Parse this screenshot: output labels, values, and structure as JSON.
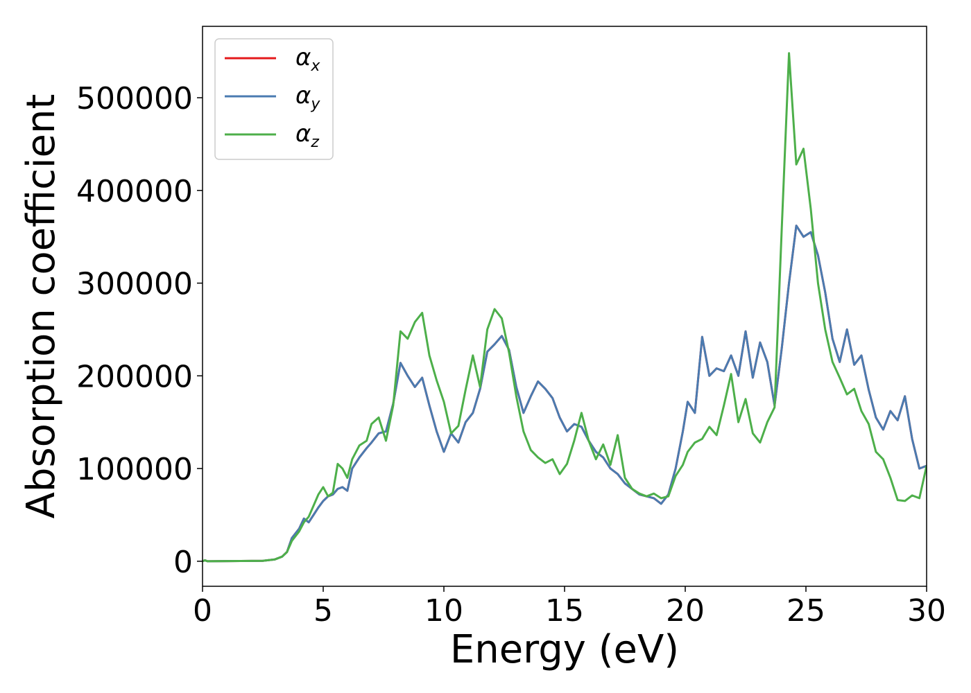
{
  "chart_data": {
    "type": "line",
    "xlabel": "Energy (eV)",
    "ylabel": "Absorption coefficient",
    "xlim": [
      0,
      30
    ],
    "ylim": [
      -27000,
      577000
    ],
    "xticks": [
      "0",
      "5",
      "10",
      "15",
      "20",
      "25",
      "30"
    ],
    "yticks": [
      "0",
      "100000",
      "200000",
      "300000",
      "400000",
      "500000"
    ],
    "grid": false,
    "legend_position": "top-left",
    "series": [
      {
        "name": "αx",
        "legend_symbol": "α",
        "legend_subscript": "x",
        "color": "#e41a1c",
        "x": [
          0,
          0.1,
          0.2,
          2.5,
          3.0,
          3.3,
          3.5,
          3.7,
          4.0,
          4.2,
          4.4,
          4.6,
          4.8,
          5.0,
          5.2,
          5.4,
          5.6,
          5.8,
          6.0,
          6.2,
          6.5,
          6.8,
          7.0,
          7.3,
          7.6,
          7.9,
          8.2,
          8.5,
          8.8,
          9.1,
          9.4,
          9.7,
          10.0,
          10.3,
          10.6,
          10.9,
          11.2,
          11.5,
          11.8,
          12.1,
          12.4,
          12.7,
          13.0,
          13.3,
          13.6,
          13.9,
          14.2,
          14.5,
          14.8,
          15.1,
          15.4,
          15.7,
          16.0,
          16.3,
          16.6,
          16.9,
          17.2,
          17.5,
          17.8,
          18.1,
          18.4,
          18.7,
          19.0,
          19.3,
          19.6,
          19.9,
          20.1,
          20.4,
          20.7,
          21.0,
          21.3,
          21.6,
          21.9,
          22.2,
          22.5,
          22.8,
          23.1,
          23.4,
          23.7,
          24.0,
          24.3,
          24.6,
          24.9,
          25.2,
          25.5,
          25.8,
          26.1,
          26.4,
          26.7,
          27.0,
          27.3,
          27.6,
          27.9,
          28.2,
          28.5,
          28.8,
          29.1,
          29.4,
          29.7,
          30.0
        ],
        "y": [
          0,
          1000,
          0,
          500,
          2000,
          5000,
          10000,
          25000,
          35000,
          46000,
          42000,
          50000,
          58000,
          65000,
          70000,
          72000,
          78000,
          80000,
          76000,
          100000,
          112000,
          122000,
          128000,
          138000,
          140000,
          170000,
          214000,
          200000,
          188000,
          198000,
          168000,
          140000,
          118000,
          138000,
          128000,
          150000,
          160000,
          186000,
          226000,
          234000,
          243000,
          228000,
          188000,
          160000,
          178000,
          194000,
          186000,
          176000,
          155000,
          140000,
          148000,
          145000,
          130000,
          118000,
          112000,
          100000,
          94000,
          84000,
          78000,
          72000,
          70000,
          68000,
          62000,
          72000,
          100000,
          140000,
          172000,
          160000,
          242000,
          200000,
          208000,
          205000,
          222000,
          200000,
          248000,
          198000,
          236000,
          215000,
          168000,
          230000,
          300000,
          362000,
          350000,
          355000,
          330000,
          290000,
          240000,
          215000,
          250000,
          212000,
          222000,
          185000,
          155000,
          142000,
          162000,
          152000,
          178000,
          132000,
          100000,
          103000
        ]
      },
      {
        "name": "αy",
        "legend_symbol": "α",
        "legend_subscript": "y",
        "color": "#4a7bb0",
        "x": [
          0,
          0.1,
          0.2,
          2.5,
          3.0,
          3.3,
          3.5,
          3.7,
          4.0,
          4.2,
          4.4,
          4.6,
          4.8,
          5.0,
          5.2,
          5.4,
          5.6,
          5.8,
          6.0,
          6.2,
          6.5,
          6.8,
          7.0,
          7.3,
          7.6,
          7.9,
          8.2,
          8.5,
          8.8,
          9.1,
          9.4,
          9.7,
          10.0,
          10.3,
          10.6,
          10.9,
          11.2,
          11.5,
          11.8,
          12.1,
          12.4,
          12.7,
          13.0,
          13.3,
          13.6,
          13.9,
          14.2,
          14.5,
          14.8,
          15.1,
          15.4,
          15.7,
          16.0,
          16.3,
          16.6,
          16.9,
          17.2,
          17.5,
          17.8,
          18.1,
          18.4,
          18.7,
          19.0,
          19.3,
          19.6,
          19.9,
          20.1,
          20.4,
          20.7,
          21.0,
          21.3,
          21.6,
          21.9,
          22.2,
          22.5,
          22.8,
          23.1,
          23.4,
          23.7,
          24.0,
          24.3,
          24.6,
          24.9,
          25.2,
          25.5,
          25.8,
          26.1,
          26.4,
          26.7,
          27.0,
          27.3,
          27.6,
          27.9,
          28.2,
          28.5,
          28.8,
          29.1,
          29.4,
          29.7,
          30.0
        ],
        "y": [
          0,
          1000,
          0,
          500,
          2000,
          5000,
          10000,
          25000,
          35000,
          46000,
          42000,
          50000,
          58000,
          65000,
          70000,
          72000,
          78000,
          80000,
          76000,
          100000,
          112000,
          122000,
          128000,
          138000,
          140000,
          170000,
          214000,
          200000,
          188000,
          198000,
          168000,
          140000,
          118000,
          138000,
          128000,
          150000,
          160000,
          186000,
          226000,
          234000,
          243000,
          228000,
          188000,
          160000,
          178000,
          194000,
          186000,
          176000,
          155000,
          140000,
          148000,
          145000,
          130000,
          118000,
          112000,
          100000,
          94000,
          84000,
          78000,
          72000,
          70000,
          68000,
          62000,
          72000,
          100000,
          140000,
          172000,
          160000,
          242000,
          200000,
          208000,
          205000,
          222000,
          200000,
          248000,
          198000,
          236000,
          215000,
          168000,
          230000,
          300000,
          362000,
          350000,
          355000,
          330000,
          290000,
          240000,
          215000,
          250000,
          212000,
          222000,
          185000,
          155000,
          142000,
          162000,
          152000,
          178000,
          132000,
          100000,
          103000
        ]
      },
      {
        "name": "αz",
        "legend_symbol": "α",
        "legend_subscript": "z",
        "color": "#4daf4a",
        "x": [
          0,
          0.1,
          0.2,
          2.5,
          3.0,
          3.3,
          3.5,
          3.7,
          4.0,
          4.2,
          4.4,
          4.6,
          4.8,
          5.0,
          5.2,
          5.4,
          5.6,
          5.8,
          6.0,
          6.2,
          6.5,
          6.8,
          7.0,
          7.3,
          7.6,
          7.9,
          8.2,
          8.5,
          8.8,
          9.1,
          9.4,
          9.7,
          10.0,
          10.3,
          10.6,
          10.9,
          11.2,
          11.5,
          11.8,
          12.1,
          12.4,
          12.7,
          13.0,
          13.3,
          13.6,
          13.9,
          14.2,
          14.5,
          14.8,
          15.1,
          15.4,
          15.7,
          16.0,
          16.3,
          16.6,
          16.9,
          17.2,
          17.5,
          17.8,
          18.1,
          18.4,
          18.7,
          19.0,
          19.3,
          19.6,
          19.9,
          20.1,
          20.4,
          20.7,
          21.0,
          21.3,
          21.6,
          21.9,
          22.2,
          22.5,
          22.8,
          23.1,
          23.4,
          23.7,
          24.0,
          24.3,
          24.6,
          24.9,
          25.2,
          25.5,
          25.8,
          26.1,
          26.4,
          26.7,
          27.0,
          27.3,
          27.6,
          27.9,
          28.2,
          28.5,
          28.8,
          29.1,
          29.4,
          29.7,
          30.0
        ],
        "y": [
          0,
          1000,
          0,
          500,
          2000,
          5000,
          10000,
          22000,
          32000,
          42000,
          48000,
          60000,
          72000,
          80000,
          70000,
          74000,
          105000,
          100000,
          90000,
          110000,
          125000,
          130000,
          148000,
          155000,
          130000,
          168000,
          248000,
          240000,
          258000,
          268000,
          222000,
          195000,
          172000,
          138000,
          146000,
          185000,
          222000,
          188000,
          250000,
          272000,
          262000,
          225000,
          178000,
          140000,
          120000,
          112000,
          106000,
          110000,
          94000,
          105000,
          130000,
          160000,
          130000,
          110000,
          126000,
          104000,
          136000,
          90000,
          78000,
          73000,
          70000,
          73000,
          68000,
          70000,
          92000,
          104000,
          118000,
          128000,
          132000,
          145000,
          136000,
          168000,
          202000,
          150000,
          175000,
          138000,
          128000,
          150000,
          166000,
          360000,
          548000,
          428000,
          445000,
          380000,
          300000,
          250000,
          215000,
          198000,
          180000,
          186000,
          162000,
          148000,
          118000,
          110000,
          90000,
          66000,
          65000,
          71000,
          68000,
          103000
        ]
      }
    ]
  }
}
